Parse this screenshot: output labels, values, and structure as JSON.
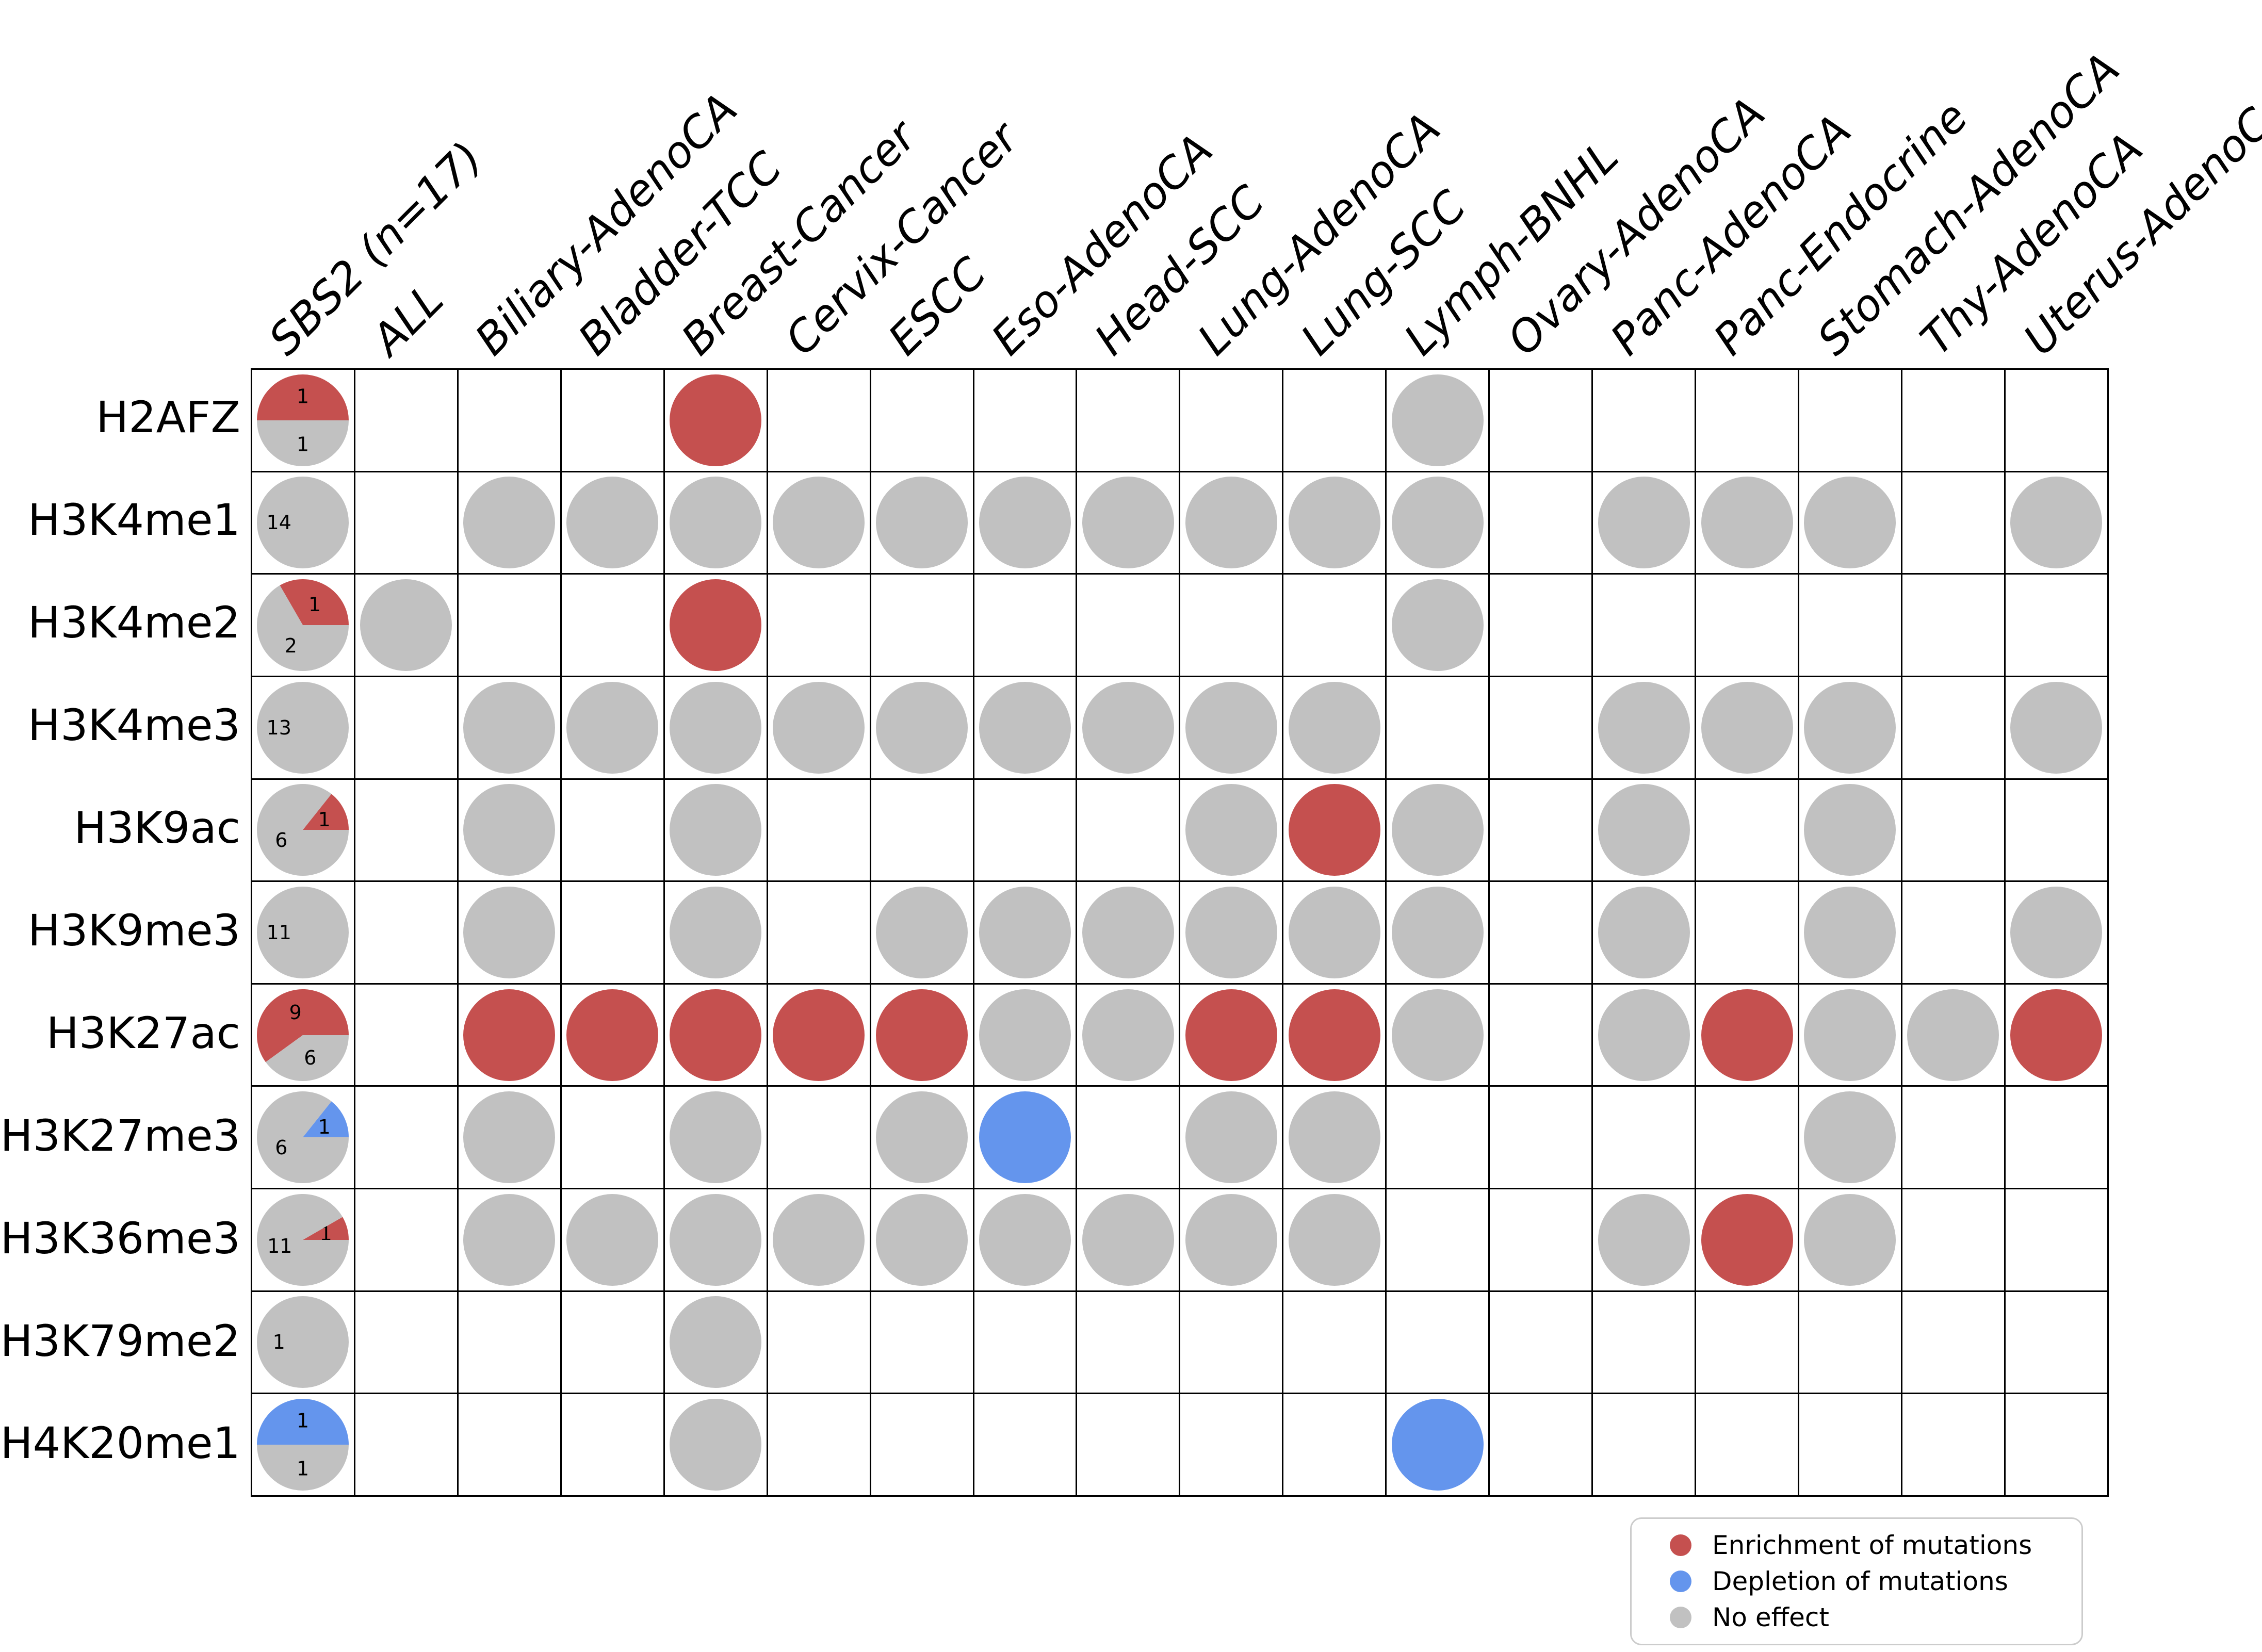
{
  "colors": {
    "R": "#c5504f",
    "B": "#6495ed",
    "G": "#c1c1c1",
    "grid_line": "#000000",
    "legend_border": "#cccccc",
    "text": "#000000",
    "background": "#ffffff"
  },
  "chart_data": {
    "type": "heatmap",
    "title": "",
    "first_column_label": "SBS2 (n=17)",
    "x_categories": [
      "ALL",
      "Biliary-AdenoCA",
      "Bladder-TCC",
      "Breast-Cancer",
      "Cervix-Cancer",
      "ESCC",
      "Eso-AdenoCA",
      "Head-SCC",
      "Lung-AdenoCA",
      "Lung-SCC",
      "Lymph-BNHL",
      "Ovary-AdenoCA",
      "Panc-AdenoCA",
      "Panc-Endocrine",
      "Stomach-AdenoCA",
      "Thy-AdenoCA",
      "Uterus-AdenoCA"
    ],
    "y_categories": [
      "H2AFZ",
      "H3K4me1",
      "H3K4me2",
      "H3K4me3",
      "H3K9ac",
      "H3K9me3",
      "H3K27ac",
      "H3K27me3",
      "H3K36me3",
      "H3K79me2",
      "H4K20me1"
    ],
    "status_codes": {
      "R": "Enrichment of mutations",
      "B": "Depletion of mutations",
      "G": "No effect"
    },
    "matrix": [
      [
        "",
        "",
        "",
        "R",
        "",
        "",
        "",
        "",
        "",
        "",
        "G",
        "",
        "",
        "",
        "",
        "",
        ""
      ],
      [
        "",
        "G",
        "G",
        "G",
        "G",
        "G",
        "G",
        "G",
        "G",
        "G",
        "G",
        "",
        "G",
        "G",
        "G",
        "",
        "G"
      ],
      [
        "G",
        "",
        "",
        "R",
        "",
        "",
        "",
        "",
        "",
        "",
        "G",
        "",
        "",
        "",
        "",
        "",
        ""
      ],
      [
        "",
        "G",
        "G",
        "G",
        "G",
        "G",
        "G",
        "G",
        "G",
        "G",
        "",
        "",
        "G",
        "G",
        "G",
        "",
        "G"
      ],
      [
        "",
        "G",
        "",
        "G",
        "",
        "",
        "",
        "",
        "G",
        "R",
        "G",
        "",
        "G",
        "",
        "G",
        "",
        ""
      ],
      [
        "",
        "G",
        "",
        "G",
        "",
        "G",
        "G",
        "G",
        "G",
        "G",
        "G",
        "",
        "G",
        "",
        "G",
        "",
        "G"
      ],
      [
        "",
        "R",
        "R",
        "R",
        "R",
        "R",
        "G",
        "G",
        "R",
        "R",
        "G",
        "",
        "G",
        "R",
        "G",
        "G",
        "R"
      ],
      [
        "",
        "G",
        "",
        "G",
        "",
        "G",
        "B",
        "",
        "G",
        "G",
        "",
        "",
        "",
        "",
        "G",
        "",
        ""
      ],
      [
        "",
        "G",
        "G",
        "G",
        "G",
        "G",
        "G",
        "G",
        "G",
        "G",
        "",
        "",
        "G",
        "R",
        "G",
        "",
        ""
      ],
      [
        "",
        "",
        "",
        "G",
        "",
        "",
        "",
        "",
        "",
        "",
        "",
        "",
        "",
        "",
        "",
        "",
        ""
      ],
      [
        "",
        "",
        "",
        "G",
        "",
        "",
        "",
        "",
        "",
        "",
        "B",
        "",
        "",
        "",
        "",
        "",
        ""
      ]
    ],
    "pies": [
      [
        {
          "code": "R",
          "value": 1
        },
        {
          "code": "G",
          "value": 1
        }
      ],
      [
        {
          "code": "G",
          "value": 14
        }
      ],
      [
        {
          "code": "R",
          "value": 1
        },
        {
          "code": "G",
          "value": 2
        }
      ],
      [
        {
          "code": "G",
          "value": 13
        }
      ],
      [
        {
          "code": "R",
          "value": 1
        },
        {
          "code": "G",
          "value": 6
        }
      ],
      [
        {
          "code": "G",
          "value": 11
        }
      ],
      [
        {
          "code": "R",
          "value": 9
        },
        {
          "code": "G",
          "value": 6
        }
      ],
      [
        {
          "code": "B",
          "value": 1
        },
        {
          "code": "G",
          "value": 6
        }
      ],
      [
        {
          "code": "R",
          "value": 1
        },
        {
          "code": "G",
          "value": 11
        }
      ],
      [
        {
          "code": "G",
          "value": 1
        }
      ],
      [
        {
          "code": "B",
          "value": 1
        },
        {
          "code": "G",
          "value": 1
        }
      ]
    ],
    "pie_start_angle_deg": 0,
    "pie_direction": "counterclockwise",
    "legend": {
      "entries": [
        {
          "code": "R",
          "label": "Enrichment of mutations"
        },
        {
          "code": "B",
          "label": "Depletion of mutations"
        },
        {
          "code": "G",
          "label": "No effect"
        }
      ],
      "position": "bottom-right"
    },
    "grid_on": true
  }
}
